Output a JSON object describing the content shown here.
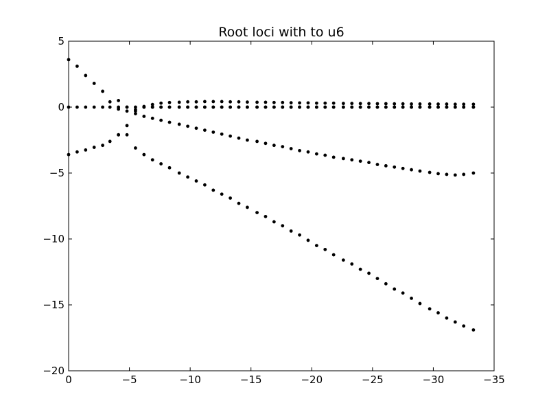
{
  "chart_data": {
    "type": "scatter",
    "title": "Root loci with to u6",
    "xlabel": "",
    "ylabel": "",
    "xlim": [
      0,
      -35
    ],
    "ylim": [
      -20,
      5
    ],
    "xticks": [
      0,
      -5,
      -10,
      -15,
      -20,
      -25,
      -30,
      -35
    ],
    "yticks": [
      5,
      0,
      -5,
      -10,
      -15,
      -20
    ],
    "xtick_labels": [
      "0",
      "−5",
      "−10",
      "−15",
      "−20",
      "−25",
      "−30",
      "−35"
    ],
    "ytick_labels": [
      "5",
      "0",
      "−5",
      "−10",
      "−15",
      "−20"
    ],
    "grid": false,
    "marker_color": "#000000",
    "series": [
      {
        "x": [
          0,
          -0.7,
          -1.4,
          -2.1,
          -2.8,
          -3.4,
          -4.1,
          -4.8,
          -5.5,
          -6.2,
          -6.9,
          -7.6,
          -8.3,
          -9.1,
          -9.8,
          -10.5,
          -11.2,
          -11.9,
          -12.6,
          -13.3,
          -14.0,
          -14.7,
          -15.5,
          -16.2,
          -16.9,
          -17.6,
          -18.3,
          -19.0,
          -19.7,
          -20.4,
          -21.1,
          -21.8,
          -22.6,
          -23.3,
          -24.0,
          -24.7,
          -25.4,
          -26.1,
          -26.8,
          -27.5,
          -28.2,
          -28.9,
          -29.7,
          -30.4,
          -31.1,
          -31.8,
          -32.5,
          -33.3
        ],
        "y": [
          0,
          0,
          0,
          0,
          0,
          0,
          0,
          0,
          0,
          0,
          0,
          0,
          0,
          0,
          0,
          0,
          0,
          0,
          0,
          0,
          0,
          0,
          0,
          0,
          0,
          0,
          0,
          0,
          0,
          0,
          0,
          0,
          0,
          0,
          0,
          0,
          0,
          0,
          0,
          0,
          0,
          0,
          0,
          0,
          0,
          0,
          0,
          0
        ]
      },
      {
        "x": [
          0,
          -0.7,
          -1.4,
          -2.1,
          -2.8,
          -3.4,
          -4.1,
          -4.8,
          -5.5,
          -6.2,
          -6.9,
          -7.6,
          -8.3,
          -9.1,
          -9.8,
          -10.5,
          -11.2,
          -11.9,
          -12.6,
          -13.3,
          -14.0,
          -14.7,
          -15.5,
          -16.2,
          -16.9,
          -17.6,
          -18.3,
          -19.0,
          -19.7,
          -20.4,
          -21.1,
          -21.8,
          -22.6,
          -23.3,
          -24.0,
          -24.7,
          -25.4,
          -26.1,
          -26.8,
          -27.5,
          -28.2,
          -28.9,
          -29.7,
          -30.4,
          -31.1,
          -31.8,
          -32.5,
          -33.3
        ],
        "y": [
          3.6,
          3.1,
          2.4,
          1.8,
          1.2,
          0.4,
          -0.15,
          -0.3,
          -0.5,
          -0.7,
          -0.85,
          -1.0,
          -1.15,
          -1.3,
          -1.45,
          -1.6,
          -1.75,
          -1.9,
          -2.05,
          -2.2,
          -2.35,
          -2.5,
          -2.6,
          -2.75,
          -2.9,
          -3.0,
          -3.15,
          -3.3,
          -3.4,
          -3.55,
          -3.65,
          -3.8,
          -3.9,
          -4.0,
          -4.1,
          -4.2,
          -4.35,
          -4.45,
          -4.55,
          -4.65,
          -4.75,
          -4.85,
          -4.95,
          -5.05,
          -5.1,
          -5.15,
          -5.1,
          -5.0
        ]
      },
      {
        "x": [
          0,
          -0.7,
          -1.4,
          -2.1,
          -2.8,
          -3.4,
          -4.1,
          -4.8,
          -5.5,
          -6.2,
          -6.9,
          -7.6,
          -8.3,
          -9.1,
          -9.8,
          -10.5,
          -11.2,
          -11.9,
          -12.6,
          -13.3,
          -14.0,
          -14.7,
          -15.5,
          -16.2,
          -16.9,
          -17.6,
          -18.3,
          -19.0,
          -19.7,
          -20.4,
          -21.1,
          -21.8,
          -22.6,
          -23.3,
          -24.0,
          -24.7,
          -25.4,
          -26.1,
          -26.8,
          -27.5,
          -28.2,
          -28.9,
          -29.7,
          -30.4,
          -31.1,
          -31.8,
          -32.5,
          -33.3
        ],
        "y": [
          -3.6,
          -3.4,
          -3.25,
          -3.05,
          -2.9,
          -2.6,
          -2.1,
          -1.4,
          -3.1,
          -3.6,
          -4.0,
          -4.3,
          -4.6,
          -5.0,
          -5.3,
          -5.6,
          -5.9,
          -6.3,
          -6.6,
          -6.9,
          -7.3,
          -7.6,
          -8.0,
          -8.3,
          -8.7,
          -9.0,
          -9.4,
          -9.7,
          -10.1,
          -10.5,
          -10.8,
          -11.2,
          -11.6,
          -11.9,
          -12.3,
          -12.6,
          -13.0,
          -13.4,
          -13.8,
          -14.1,
          -14.5,
          -14.9,
          -15.3,
          -15.6,
          -16.0,
          -16.3,
          -16.6,
          -16.9
        ]
      },
      {
        "x": [
          -4.1,
          -4.8,
          -5.5,
          -6.2,
          -6.9,
          -7.6,
          -8.3,
          -9.1,
          -9.8,
          -10.5,
          -11.2,
          -11.9,
          -12.6,
          -13.3,
          -14.0,
          -14.7,
          -15.5,
          -16.2,
          -16.9,
          -17.6,
          -18.3,
          -19.0,
          -19.7,
          -20.4,
          -21.1,
          -21.8,
          -22.6,
          -23.3,
          -24.0,
          -24.7,
          -25.4,
          -26.1,
          -26.8,
          -27.5,
          -28.2,
          -28.9,
          -29.7,
          -30.4,
          -31.1,
          -31.8,
          -32.5,
          -33.3
        ],
        "y": [
          -2.1,
          -2.1,
          -0.3,
          0,
          0,
          0,
          0,
          0,
          0,
          0,
          0,
          0,
          0,
          0,
          0,
          0,
          0,
          0,
          0,
          0,
          0,
          0,
          0,
          0,
          0,
          0,
          0,
          0,
          0,
          0,
          0,
          0,
          0,
          0,
          0,
          0,
          0,
          0,
          0,
          0,
          0,
          0
        ]
      },
      {
        "x": [
          -4.1,
          -4.8,
          -5.5,
          -6.2,
          -6.9,
          -7.6,
          -8.3,
          -9.1,
          -9.8,
          -10.5,
          -11.2,
          -11.9,
          -12.6,
          -13.3,
          -14.0,
          -14.7,
          -15.5,
          -16.2,
          -16.9,
          -17.6,
          -18.3,
          -19.0,
          -19.7,
          -20.4,
          -21.1,
          -21.8,
          -22.6,
          -23.3,
          -24.0,
          -24.7,
          -25.4,
          -26.1,
          -26.8,
          -27.5,
          -28.2,
          -28.9,
          -29.7,
          -30.4,
          -31.1,
          -31.8,
          -32.5,
          -33.3
        ],
        "y": [
          0.5,
          0.0,
          -0.2,
          0.05,
          0.2,
          0.3,
          0.35,
          0.37,
          0.4,
          0.4,
          0.42,
          0.42,
          0.42,
          0.4,
          0.4,
          0.38,
          0.37,
          0.37,
          0.35,
          0.35,
          0.33,
          0.32,
          0.32,
          0.3,
          0.3,
          0.3,
          0.28,
          0.28,
          0.27,
          0.27,
          0.26,
          0.26,
          0.25,
          0.25,
          0.24,
          0.24,
          0.24,
          0.23,
          0.23,
          0.22,
          0.22,
          0.22
        ]
      }
    ]
  }
}
